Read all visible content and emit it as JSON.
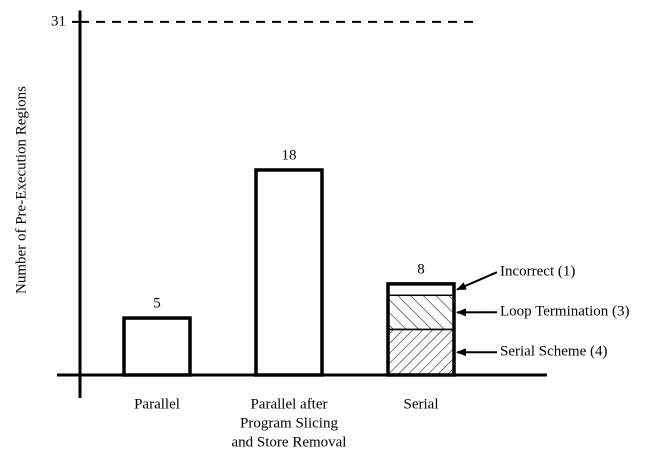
{
  "chart_data": {
    "type": "bar",
    "y_label": "Number of Pre-Execution Regions",
    "categories": [
      [
        "Parallel"
      ],
      [
        "Parallel after",
        "Program Slicing",
        "and Store Removal"
      ],
      [
        "Serial"
      ]
    ],
    "values": [
      5,
      18,
      8
    ],
    "color": "#ffffff",
    "ylim": [
      0,
      32
    ],
    "yticks": [
      31
    ],
    "reference_line": 31,
    "stack": {
      "category": 2,
      "values": [
        4,
        3,
        1
      ],
      "value_labels": [
        "Serial Scheme (4)",
        "Loop Termination (3)",
        "Incorrect (1)"
      ],
      "fills": [
        "hatch-dense",
        "hatch-back",
        "plain"
      ]
    }
  }
}
